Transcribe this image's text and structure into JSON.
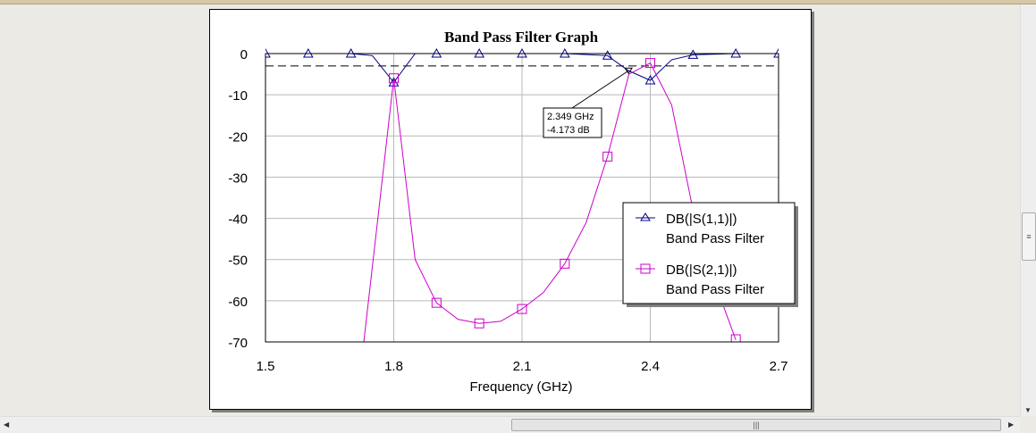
{
  "chart_data": {
    "type": "line",
    "title": "Band Pass Filter Graph",
    "xlabel": "Frequency (GHz)",
    "ylabel": "",
    "xlim": [
      1.5,
      2.7
    ],
    "ylim": [
      -70,
      0
    ],
    "xticks": [
      "1.5",
      "1.8",
      "2.1",
      "2.4",
      "2.7"
    ],
    "yticks": [
      "0",
      "-10",
      "-20",
      "-30",
      "-40",
      "-50",
      "-60",
      "-70"
    ],
    "grid": true,
    "reference_line_db": -3,
    "legend_position": "right",
    "series": [
      {
        "name": "DB(|S(1,1)|)",
        "sub": "Band Pass Filter",
        "color": "#00008b",
        "marker": "triangle",
        "x": [
          1.5,
          1.6,
          1.7,
          1.75,
          1.8,
          1.85,
          1.9,
          2.0,
          2.1,
          2.2,
          2.3,
          2.349,
          2.4,
          2.45,
          2.5,
          2.6,
          2.7
        ],
        "y": [
          0,
          0,
          0,
          -0.5,
          -7,
          0,
          0,
          0,
          0,
          0,
          -0.5,
          -4.173,
          -6.5,
          -1.5,
          -0.3,
          0,
          0
        ],
        "markers_x": [
          1.5,
          1.6,
          1.7,
          1.8,
          1.9,
          2.0,
          2.1,
          2.2,
          2.3,
          2.4,
          2.5,
          2.6,
          2.7
        ]
      },
      {
        "name": "DB(|S(2,1)|)",
        "sub": "Band Pass Filter",
        "color": "#cc00cc",
        "marker": "square",
        "x": [
          1.73,
          1.8,
          1.85,
          1.9,
          1.95,
          2.0,
          2.05,
          2.1,
          2.15,
          2.2,
          2.25,
          2.3,
          2.35,
          2.4,
          2.45,
          2.5,
          2.57,
          2.6
        ],
        "y": [
          -70,
          -6,
          -50,
          -60.5,
          -64.5,
          -65.5,
          -65,
          -62,
          -58,
          -51,
          -41,
          -25,
          -5,
          -2.3,
          -12.5,
          -38,
          -61,
          -69.5
        ],
        "markers_x": [
          1.8,
          1.9,
          2.0,
          2.1,
          2.2,
          2.3,
          2.4,
          2.6
        ]
      }
    ],
    "annotation": {
      "x": 2.349,
      "y": -4.173,
      "line1": "2.349 GHz",
      "line2": "-4.173 dB"
    }
  }
}
